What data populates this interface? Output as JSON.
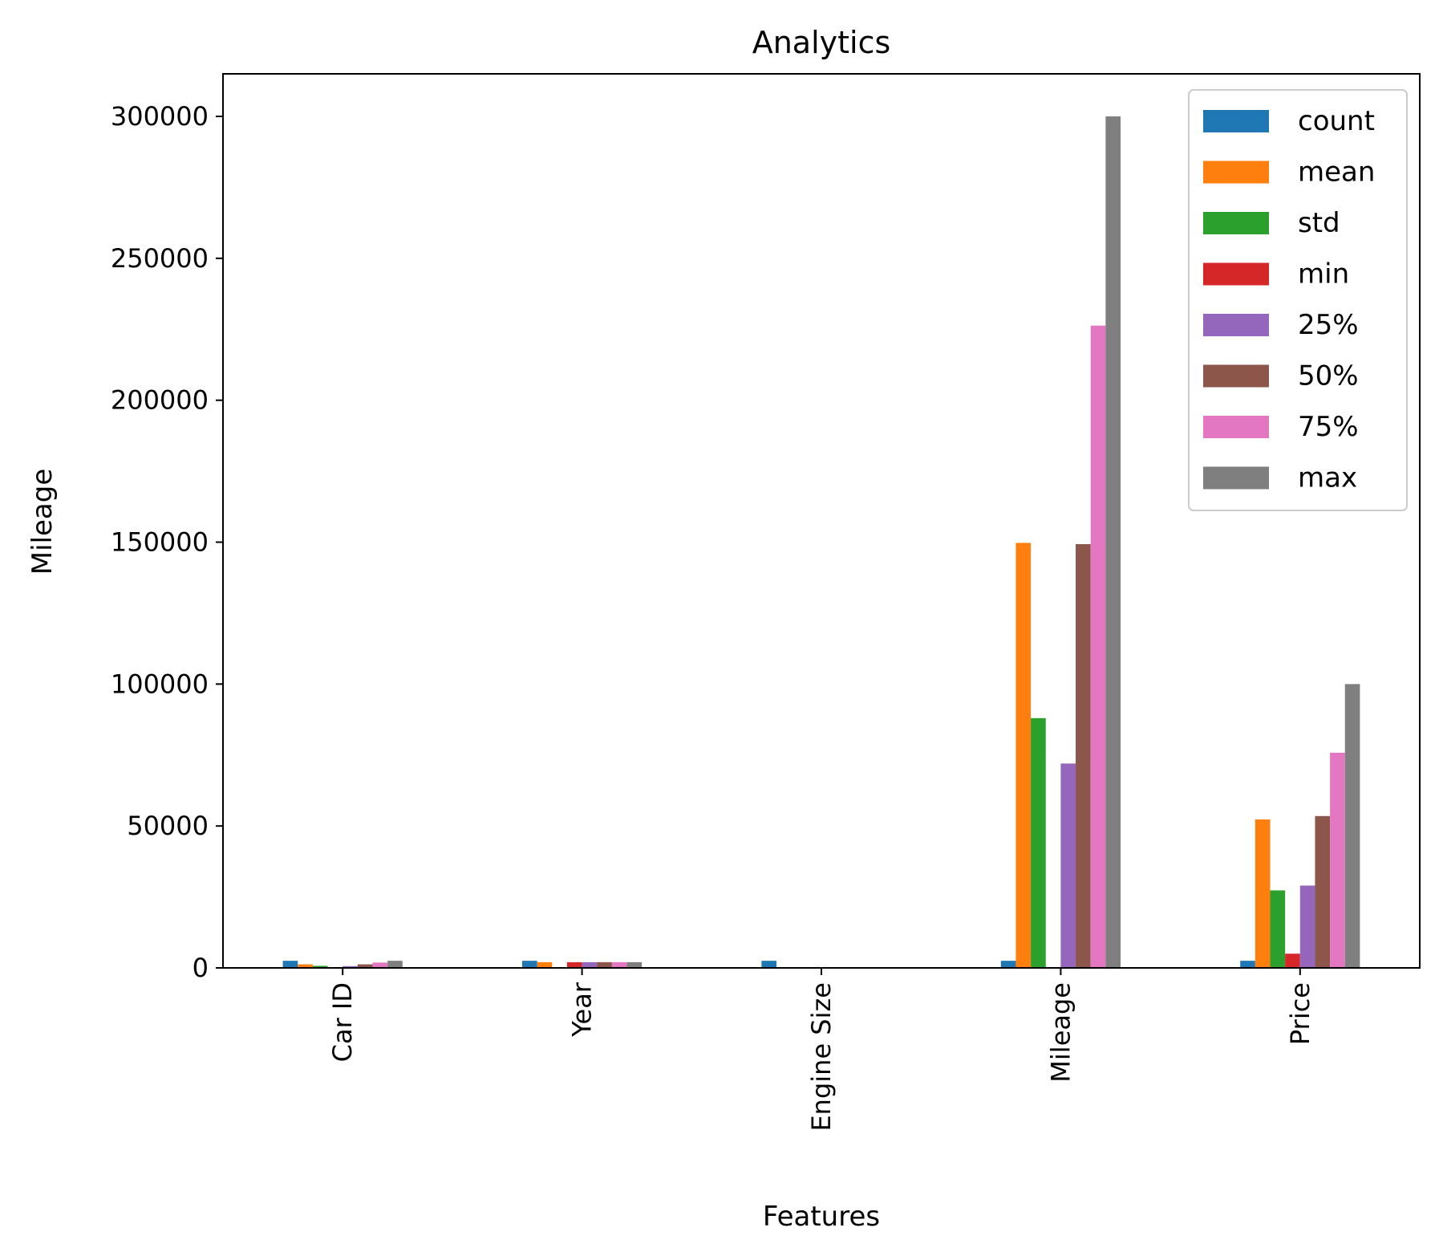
{
  "chart_data": {
    "type": "bar",
    "title": "Analytics",
    "xlabel": "Features",
    "ylabel": "Mileage",
    "categories": [
      "Car ID",
      "Year",
      "Engine Size",
      "Mileage",
      "Price"
    ],
    "ylim": [
      0,
      315000
    ],
    "yticks": [
      0,
      50000,
      100000,
      150000,
      200000,
      250000,
      300000
    ],
    "ytick_labels": [
      "0",
      "50000",
      "100000",
      "150000",
      "200000",
      "250000",
      "300000"
    ],
    "grid": false,
    "legend_position": "top-right",
    "series": [
      {
        "name": "count",
        "color": "#1f77b4",
        "values": [
          2500,
          2500,
          2500,
          2500,
          2500
        ]
      },
      {
        "name": "mean",
        "color": "#ff7f0e",
        "values": [
          1250,
          2011,
          3,
          149750,
          52300
        ]
      },
      {
        "name": "std",
        "color": "#2ca02c",
        "values": [
          720,
          6,
          1,
          88000,
          27300
        ]
      },
      {
        "name": "min",
        "color": "#d62728",
        "values": [
          1,
          2000,
          1,
          56,
          5000
        ]
      },
      {
        "name": "25%",
        "color": "#9467bd",
        "values": [
          625,
          2005,
          2,
          72000,
          29000
        ]
      },
      {
        "name": "50%",
        "color": "#8c564b",
        "values": [
          1250,
          2012,
          3,
          149300,
          53500
        ]
      },
      {
        "name": "75%",
        "color": "#e377c2",
        "values": [
          1875,
          2017,
          4,
          226300,
          75800
        ]
      },
      {
        "name": "max",
        "color": "#7f7f7f",
        "values": [
          2500,
          2023,
          5,
          300000,
          100000
        ]
      }
    ]
  }
}
